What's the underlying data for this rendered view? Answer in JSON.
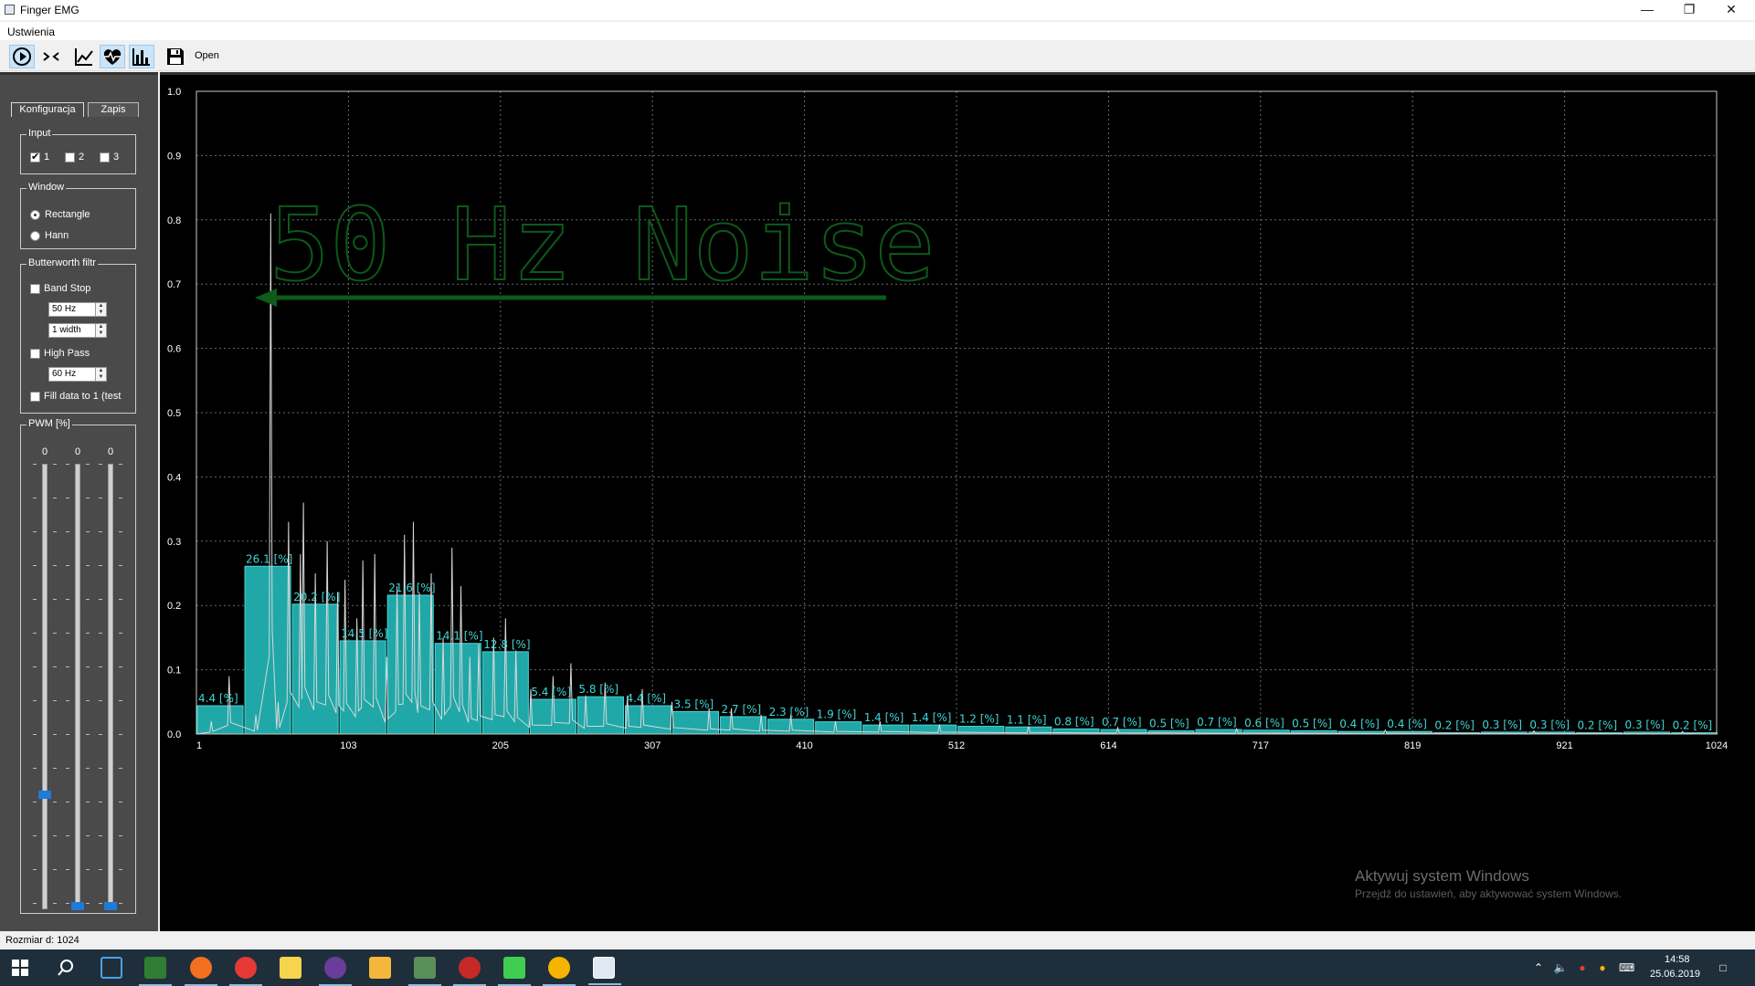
{
  "window": {
    "title": "Finger EMG"
  },
  "menu": {
    "settings": "Ustwienia"
  },
  "toolbar": {
    "open_label": "Open"
  },
  "sidebar": {
    "tabs": [
      "Konfiguracja",
      "Zapis"
    ],
    "input_group": {
      "title": "Input",
      "channels": [
        {
          "label": "1",
          "checked": true
        },
        {
          "label": "2",
          "checked": false
        },
        {
          "label": "3",
          "checked": false
        }
      ]
    },
    "window_group": {
      "title": "Window",
      "options": [
        "Rectangle",
        "Hann"
      ],
      "selected": "Rectangle"
    },
    "filter_group": {
      "title": "Butterworth filtr",
      "band_stop_label": "Band Stop",
      "band_stop_freq": "50 Hz",
      "band_stop_width": "1 width",
      "high_pass_label": "High Pass",
      "high_pass_freq": "60 Hz",
      "fill_label": "Fill data to 1 (test"
    },
    "pwm_group": {
      "title": "PWM [%]",
      "values": [
        "0",
        "0",
        "0"
      ],
      "levels": [
        0.25,
        0,
        0
      ]
    }
  },
  "status": {
    "text": "Rozmiar d: 1024"
  },
  "taskbar": {
    "time": "14:58",
    "date": "25.06.2019"
  },
  "watermark": {
    "line1": "Aktywuj system Windows",
    "line2": "Przejdź do ustawień, aby aktywować system Windows."
  },
  "annotation": {
    "text": "50 Hz Noise"
  },
  "colors": {
    "bar": "#20a8a8",
    "bar_label": "#3fd6d6",
    "grid": "#6a6a6a",
    "annotation": "#0d5a1a",
    "line": "#d8d8d8"
  },
  "chart_data": {
    "type": "bar",
    "ylim": [
      0,
      1.0
    ],
    "xlim": [
      1,
      1024
    ],
    "y_ticks": [
      "0.0",
      "0.1",
      "0.2",
      "0.3",
      "0.4",
      "0.5",
      "0.6",
      "0.7",
      "0.8",
      "0.9",
      "1.0"
    ],
    "x_ticks": [
      "1",
      "103",
      "205",
      "307",
      "410",
      "512",
      "614",
      "717",
      "819",
      "921",
      "1024"
    ],
    "bin_width": 32,
    "bar_heights": [
      0.044,
      0.261,
      0.202,
      0.145,
      0.216,
      0.141,
      0.128,
      0.054,
      0.058,
      0.044,
      0.035,
      0.027,
      0.023,
      0.019,
      0.014,
      0.014,
      0.012,
      0.011,
      0.008,
      0.007,
      0.005,
      0.007,
      0.006,
      0.005,
      0.004,
      0.004,
      0.002,
      0.003,
      0.003,
      0.002,
      0.003,
      0.002
    ],
    "bar_labels": [
      "4.4 [%]",
      "26.1 [%]",
      "20.2 [%]",
      "14.5 [%]",
      "21.6 [%]",
      "14.1 [%]",
      "12.8 [%]",
      "5.4 [%]",
      "5.8 [%]",
      "4.4 [%]",
      "3.5 [%]",
      "2.7 [%]",
      "2.3 [%]",
      "1.9 [%]",
      "1.4 [%]",
      "1.4 [%]",
      "1.2 [%]",
      "1.1 [%]",
      "0.8 [%]",
      "0.7 [%]",
      "0.5 [%]",
      "0.7 [%]",
      "0.6 [%]",
      "0.5 [%]",
      "0.4 [%]",
      "0.4 [%]",
      "0.2 [%]",
      "0.3 [%]",
      "0.3 [%]",
      "0.2 [%]",
      "0.3 [%]",
      "0.2 [%]"
    ],
    "spectrum_peaks": [
      [
        10,
        0.02
      ],
      [
        22,
        0.09
      ],
      [
        40,
        0.03
      ],
      [
        50,
        0.81
      ],
      [
        55,
        0.05
      ],
      [
        62,
        0.33
      ],
      [
        70,
        0.28
      ],
      [
        72,
        0.36
      ],
      [
        80,
        0.25
      ],
      [
        88,
        0.3
      ],
      [
        95,
        0.22
      ],
      [
        100,
        0.24
      ],
      [
        108,
        0.18
      ],
      [
        112,
        0.27
      ],
      [
        120,
        0.28
      ],
      [
        128,
        0.12
      ],
      [
        135,
        0.23
      ],
      [
        140,
        0.31
      ],
      [
        146,
        0.33
      ],
      [
        150,
        0.22
      ],
      [
        158,
        0.25
      ],
      [
        166,
        0.15
      ],
      [
        172,
        0.29
      ],
      [
        178,
        0.23
      ],
      [
        184,
        0.12
      ],
      [
        190,
        0.14
      ],
      [
        200,
        0.15
      ],
      [
        208,
        0.18
      ],
      [
        215,
        0.13
      ],
      [
        225,
        0.07
      ],
      [
        240,
        0.09
      ],
      [
        252,
        0.11
      ],
      [
        262,
        0.06
      ],
      [
        275,
        0.08
      ],
      [
        290,
        0.06
      ],
      [
        300,
        0.07
      ],
      [
        320,
        0.05
      ],
      [
        345,
        0.04
      ],
      [
        360,
        0.04
      ],
      [
        380,
        0.03
      ],
      [
        400,
        0.03
      ],
      [
        430,
        0.02
      ],
      [
        460,
        0.02
      ],
      [
        500,
        0.015
      ],
      [
        560,
        0.012
      ],
      [
        620,
        0.01
      ],
      [
        700,
        0.008
      ],
      [
        800,
        0.006
      ],
      [
        900,
        0.005
      ],
      [
        1000,
        0.004
      ]
    ]
  }
}
